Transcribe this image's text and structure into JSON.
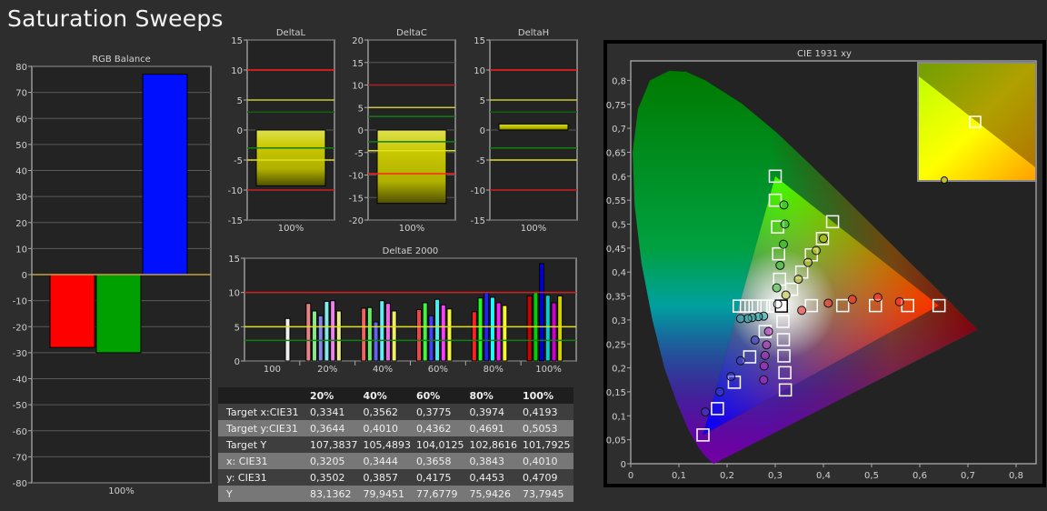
{
  "page_title": "Saturation Sweeps",
  "colors": {
    "red_line": "#ff2020",
    "yellow_line": "#e0e020",
    "green_line": "#108010",
    "bar_yellow": "#c8c800"
  },
  "chart_data": [
    {
      "id": "rgb",
      "type": "bar",
      "title": "RGB Balance",
      "categories": [
        "100%"
      ],
      "series": [
        {
          "values": [
            -28
          ],
          "color": "#ff0000"
        },
        {
          "values": [
            -30
          ],
          "color": "#00a000"
        },
        {
          "values": [
            77
          ],
          "color": "#0010ff"
        }
      ],
      "ylim": [
        -80,
        80
      ],
      "yticks": [
        80,
        70,
        60,
        50,
        40,
        30,
        20,
        10,
        0,
        -10,
        -20,
        -30,
        -40,
        -50,
        -60,
        -70,
        -80
      ],
      "reference_lines": [
        {
          "value": 0,
          "color": "#c8a040"
        }
      ]
    },
    {
      "id": "dL",
      "type": "bar",
      "title": "DeltaL",
      "categories": [
        "100%"
      ],
      "values": [
        -9.3
      ],
      "ylim": [
        -15,
        15
      ],
      "yticks": [
        15,
        10,
        5,
        0,
        -5,
        -10,
        -15
      ],
      "reference_lines": [
        {
          "value": 10,
          "color": "#ff2020"
        },
        {
          "value": 5,
          "color": "#c8c830"
        },
        {
          "value": 3,
          "color": "#106010"
        },
        {
          "value": -3,
          "color": "#108010"
        },
        {
          "value": -5,
          "color": "#e0e020"
        },
        {
          "value": -10,
          "color": "#d02020"
        }
      ]
    },
    {
      "id": "dC",
      "type": "bar",
      "title": "DeltaC",
      "categories": [
        "100%"
      ],
      "values": [
        -16.3
      ],
      "ylim": [
        -20,
        20
      ],
      "yticks": [
        20,
        15,
        10,
        5,
        0,
        -5,
        -10,
        -15,
        -20
      ],
      "reference_lines": [
        {
          "value": 10,
          "color": "#b02020"
        },
        {
          "value": 5,
          "color": "#c8c830"
        },
        {
          "value": 3,
          "color": "#108010"
        },
        {
          "value": -2.6,
          "color": "#108010"
        },
        {
          "value": -4.6,
          "color": "#e0e020"
        },
        {
          "value": -9.7,
          "color": "#ff2020"
        }
      ]
    },
    {
      "id": "dH",
      "type": "bar",
      "title": "DeltaH",
      "categories": [
        "100%"
      ],
      "values": [
        1.0
      ],
      "ylim": [
        -15,
        15
      ],
      "yticks": [
        15,
        10,
        5,
        0,
        -5,
        -10,
        -15
      ],
      "reference_lines": [
        {
          "value": 10,
          "color": "#ff2020"
        },
        {
          "value": 5,
          "color": "#c8c830"
        },
        {
          "value": 3,
          "color": "#106010"
        },
        {
          "value": -3,
          "color": "#108010"
        },
        {
          "value": -5,
          "color": "#e0e020"
        },
        {
          "value": -10,
          "color": "#d02020"
        }
      ]
    },
    {
      "id": "dE",
      "type": "bar",
      "title": "DeltaE 2000",
      "categories": [
        "100",
        "20%",
        "40%",
        "60%",
        "80%",
        "100%"
      ],
      "bar_colors": [
        "#ff0000",
        "#00ff00",
        "#0000ff",
        "#00ffff",
        "#ff00ff",
        "#ffff00"
      ],
      "groups": [
        {
          "label": "100",
          "saturation": 0,
          "values": [
            6.2
          ]
        },
        {
          "label": "20%",
          "saturation": 0.2,
          "values": [
            8.4,
            7.3,
            6.6,
            8.7,
            8.8,
            7.3
          ]
        },
        {
          "label": "40%",
          "saturation": 0.4,
          "values": [
            7.7,
            7.8,
            5.7,
            8.8,
            8.4,
            7.3
          ]
        },
        {
          "label": "60%",
          "saturation": 0.6,
          "values": [
            7.5,
            8.5,
            6.6,
            9.0,
            8.2,
            7.6
          ]
        },
        {
          "label": "80%",
          "saturation": 0.8,
          "values": [
            7.2,
            9.2,
            10.0,
            9.3,
            8.5,
            8.1
          ]
        },
        {
          "label": "100%",
          "saturation": 1.0,
          "values": [
            9.5,
            10.0,
            14.2,
            9.6,
            8.5,
            9.5
          ]
        }
      ],
      "ylim": [
        0,
        15
      ],
      "yticks": [
        15,
        10,
        5,
        0
      ],
      "reference_lines": [
        {
          "value": 10,
          "color": "#d02020"
        },
        {
          "value": 5,
          "color": "#e0e020"
        },
        {
          "value": 3,
          "color": "#108010"
        }
      ]
    },
    {
      "id": "cie",
      "type": "scatter",
      "title": "CIE 1931 xy",
      "xlim": [
        0,
        0.8
      ],
      "ylim": [
        0,
        0.8
      ],
      "xticks": [
        "0",
        "0,1",
        "0,2",
        "0,3",
        "0,4",
        "0,5",
        "0,6",
        "0,7",
        "0,8"
      ],
      "yticks": [
        "0",
        "0,05",
        "0,1",
        "0,15",
        "0,2",
        "0,25",
        "0,3",
        "0,35",
        "0,4",
        "0,45",
        "0,5",
        "0,55",
        "0,6",
        "0,65",
        "0,7",
        "0,75",
        "0,8"
      ],
      "gamut": [
        [
          0.64,
          0.33
        ],
        [
          0.3,
          0.6
        ],
        [
          0.15,
          0.06
        ]
      ],
      "white_point": [
        0.3127,
        0.329
      ],
      "series": [
        {
          "name": "red",
          "color": "#ff3030",
          "targets": [
            [
              0.375,
              0.33
            ],
            [
              0.44,
              0.33
            ],
            [
              0.508,
              0.33
            ],
            [
              0.575,
              0.33
            ],
            [
              0.64,
              0.33
            ]
          ],
          "measured": [
            [
              0.355,
              0.32
            ],
            [
              0.41,
              0.335
            ],
            [
              0.46,
              0.343
            ],
            [
              0.513,
              0.347
            ],
            [
              0.558,
              0.338
            ]
          ]
        },
        {
          "name": "green",
          "color": "#30c030",
          "targets": [
            [
              0.309,
              0.385
            ],
            [
              0.307,
              0.438
            ],
            [
              0.305,
              0.494
            ],
            [
              0.3,
              0.55
            ],
            [
              0.3,
              0.6
            ]
          ],
          "measured": [
            [
              0.303,
              0.367
            ],
            [
              0.31,
              0.414
            ],
            [
              0.317,
              0.458
            ],
            [
              0.32,
              0.5
            ],
            [
              0.318,
              0.54
            ]
          ]
        },
        {
          "name": "blue",
          "color": "#4040d0",
          "targets": [
            [
              0.279,
              0.276
            ],
            [
              0.247,
              0.223
            ],
            [
              0.215,
              0.17
            ],
            [
              0.18,
              0.115
            ],
            [
              0.15,
              0.06
            ]
          ],
          "measured": [
            [
              0.258,
              0.258
            ],
            [
              0.228,
              0.215
            ],
            [
              0.208,
              0.182
            ],
            [
              0.185,
              0.15
            ],
            [
              0.155,
              0.108
            ]
          ]
        },
        {
          "name": "cyan",
          "color": "#30b0b0",
          "targets": [
            [
              0.295,
              0.329
            ],
            [
              0.276,
              0.329
            ],
            [
              0.258,
              0.329
            ],
            [
              0.24,
              0.329
            ],
            [
              0.225,
              0.329
            ]
          ],
          "measured": [
            [
              0.276,
              0.308
            ],
            [
              0.265,
              0.307
            ],
            [
              0.252,
              0.305
            ],
            [
              0.243,
              0.303
            ],
            [
              0.228,
              0.303
            ]
          ]
        },
        {
          "name": "magenta",
          "color": "#c030c0",
          "targets": [
            [
              0.316,
              0.297
            ],
            [
              0.317,
              0.259
            ],
            [
              0.318,
              0.225
            ],
            [
              0.32,
              0.19
            ],
            [
              0.321,
              0.154
            ]
          ],
          "measured": [
            [
              0.286,
              0.276
            ],
            [
              0.282,
              0.248
            ],
            [
              0.279,
              0.226
            ],
            [
              0.277,
              0.204
            ],
            [
              0.276,
              0.175
            ]
          ]
        },
        {
          "name": "yellow",
          "color": "#c0c030",
          "targets": [
            [
              0.334,
              0.364
            ],
            [
              0.355,
              0.4
            ],
            [
              0.375,
              0.436
            ],
            [
              0.398,
              0.47
            ],
            [
              0.419,
              0.505
            ]
          ],
          "measured": [
            [
              0.322,
              0.352
            ],
            [
              0.348,
              0.385
            ],
            [
              0.368,
              0.42
            ],
            [
              0.385,
              0.445
            ],
            [
              0.4,
              0.47
            ]
          ]
        },
        {
          "name": "white",
          "color": "#ffffff",
          "targets": [
            [
              0.3127,
              0.329
            ]
          ],
          "measured": [
            [
              0.305,
              0.333
            ]
          ]
        }
      ]
    }
  ],
  "table": {
    "columns": [
      "",
      "20%",
      "40%",
      "60%",
      "80%",
      "100%"
    ],
    "rows": [
      {
        "label": "Target x:CIE31",
        "values": [
          "0,3341",
          "0,3562",
          "0,3775",
          "0,3974",
          "0,4193"
        ]
      },
      {
        "label": "Target y:CIE31",
        "values": [
          "0,3644",
          "0,4010",
          "0,4362",
          "0,4691",
          "0,5053"
        ]
      },
      {
        "label": "Target Y",
        "values": [
          "107,3837",
          "105,4893",
          "104,0125",
          "102,8616",
          "101,7925"
        ]
      },
      {
        "label": "x: CIE31",
        "values": [
          "0,3205",
          "0,3444",
          "0,3658",
          "0,3843",
          "0,4010"
        ]
      },
      {
        "label": "y: CIE31",
        "values": [
          "0,3502",
          "0,3857",
          "0,4175",
          "0,4453",
          "0,4709"
        ]
      },
      {
        "label": "Y",
        "values": [
          "83,1362",
          "79,9451",
          "77,6779",
          "75,9426",
          "73,7945"
        ]
      }
    ]
  }
}
